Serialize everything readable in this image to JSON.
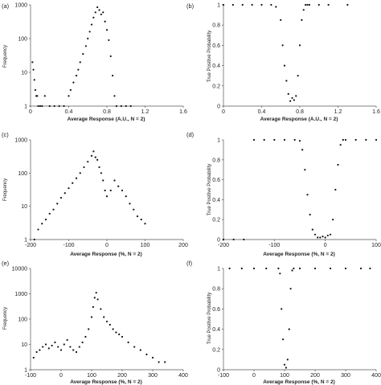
{
  "chart_data": [
    {
      "panel": "(a)",
      "type": "scatter",
      "yscale": "log",
      "xlabel": "Average Response (A.U., N = 2)",
      "ylabel": "Frequency",
      "xlim": [
        0,
        1.6
      ],
      "ylim": [
        1,
        1000
      ],
      "xticks": [
        "0",
        "0.4",
        "0.8",
        "1.2",
        "1.6"
      ],
      "yticks": [
        "1",
        "10",
        "100",
        "1000"
      ],
      "x": [
        0.02,
        0.03,
        0.04,
        0.05,
        0.06,
        0.07,
        0.08,
        0.1,
        0.12,
        0.15,
        0.2,
        0.25,
        0.3,
        0.35,
        0.4,
        0.42,
        0.45,
        0.48,
        0.5,
        0.52,
        0.55,
        0.58,
        0.6,
        0.62,
        0.64,
        0.66,
        0.68,
        0.7,
        0.72,
        0.74,
        0.76,
        0.78,
        0.8,
        0.82,
        0.84,
        0.86,
        0.88,
        0.9,
        0.95,
        1.0,
        1.05
      ],
      "y": [
        20,
        12,
        6,
        3,
        2,
        2,
        1,
        1,
        1,
        2,
        1,
        1,
        1,
        1,
        2,
        3,
        5,
        8,
        12,
        20,
        35,
        60,
        100,
        160,
        260,
        420,
        600,
        850,
        700,
        520,
        600,
        320,
        180,
        90,
        30,
        8,
        2,
        1,
        1,
        1,
        1
      ]
    },
    {
      "panel": "(b)",
      "type": "scatter",
      "xlabel": "Average Response (A.U., N = 2)",
      "ylabel": "True Positive Probability",
      "xlim": [
        0,
        1.6
      ],
      "ylim": [
        0,
        1
      ],
      "xticks": [
        "0",
        "0.4",
        "0.8",
        "1.2",
        "1.6"
      ],
      "yticks": [
        "0",
        "0.2",
        "0.4",
        "0.6",
        "0.8",
        "1"
      ],
      "x": [
        0.0,
        0.1,
        0.2,
        0.3,
        0.4,
        0.5,
        0.55,
        0.6,
        0.62,
        0.64,
        0.66,
        0.68,
        0.7,
        0.72,
        0.74,
        0.76,
        0.78,
        0.8,
        0.82,
        0.84,
        0.86,
        0.88,
        0.9,
        1.0,
        1.1,
        1.3
      ],
      "y": [
        1,
        1,
        1,
        1,
        1,
        1,
        0.98,
        0.85,
        0.6,
        0.4,
        0.25,
        0.12,
        0.05,
        0.08,
        0.06,
        0.1,
        0.3,
        0.6,
        0.85,
        0.95,
        1,
        1,
        1,
        1,
        1,
        1
      ]
    },
    {
      "panel": "(c)",
      "type": "scatter",
      "yscale": "log",
      "xlabel": "Average Response (%, N = 2)",
      "ylabel": "Frequency",
      "xlim": [
        -200,
        200
      ],
      "ylim": [
        1,
        1000
      ],
      "xticks": [
        "-200",
        "-100",
        "0",
        "100",
        "200"
      ],
      "yticks": [
        "1",
        "10",
        "100",
        "1000"
      ],
      "x": [
        -190,
        -180,
        -170,
        -160,
        -150,
        -140,
        -130,
        -120,
        -110,
        -100,
        -90,
        -80,
        -70,
        -60,
        -50,
        -40,
        -35,
        -30,
        -25,
        -20,
        -15,
        -10,
        -5,
        0,
        10,
        20,
        30,
        40,
        50,
        60,
        70,
        80,
        90,
        100
      ],
      "y": [
        1,
        2,
        3,
        4,
        6,
        8,
        12,
        18,
        25,
        35,
        50,
        70,
        100,
        150,
        220,
        330,
        450,
        300,
        250,
        150,
        100,
        60,
        30,
        20,
        30,
        60,
        40,
        30,
        20,
        12,
        8,
        5,
        4,
        3
      ]
    },
    {
      "panel": "(d)",
      "type": "scatter",
      "xlabel": "Average Response (%, N = 2)",
      "ylabel": "True Positive Probability",
      "xlim": [
        -200,
        100
      ],
      "ylim": [
        0,
        1
      ],
      "xticks": [
        "-200",
        "-100",
        "0",
        "100"
      ],
      "yticks": [
        "0",
        "0.2",
        "0.4",
        "0.6",
        "0.8",
        "1"
      ],
      "x": [
        -200,
        -180,
        -160,
        -140,
        -120,
        -100,
        -80,
        -60,
        -50,
        -45,
        -40,
        -35,
        -30,
        -25,
        -20,
        -15,
        -10,
        -5,
        0,
        5,
        10,
        15,
        20,
        25,
        30,
        35,
        40,
        60,
        80,
        100
      ],
      "y": [
        0,
        0,
        0,
        1,
        1,
        1,
        1,
        1,
        0.99,
        0.9,
        0.7,
        0.45,
        0.25,
        0.1,
        0.05,
        0.02,
        0.02,
        0.03,
        0.02,
        0.04,
        0.05,
        0.2,
        0.5,
        0.75,
        0.95,
        1,
        1,
        1,
        1,
        1
      ]
    },
    {
      "panel": "(e)",
      "type": "scatter",
      "yscale": "log",
      "xlabel": "Average Response (%, N = 2)",
      "ylabel": "Frequency",
      "xlim": [
        -100,
        400
      ],
      "ylim": [
        1,
        10000
      ],
      "xticks": [
        "-100",
        "0",
        "100",
        "200",
        "300",
        "400"
      ],
      "yticks": [
        "1",
        "10",
        "100",
        "1000",
        "10000"
      ],
      "x": [
        -90,
        -80,
        -70,
        -60,
        -50,
        -40,
        -30,
        -20,
        -10,
        0,
        10,
        20,
        30,
        40,
        50,
        60,
        70,
        80,
        90,
        100,
        105,
        110,
        115,
        120,
        130,
        140,
        150,
        160,
        170,
        180,
        190,
        200,
        220,
        240,
        260,
        280,
        300,
        320,
        340
      ],
      "y": [
        3,
        5,
        6,
        8,
        10,
        7,
        9,
        12,
        8,
        6,
        10,
        15,
        8,
        6,
        5,
        8,
        12,
        20,
        40,
        120,
        300,
        700,
        1100,
        600,
        250,
        120,
        80,
        60,
        40,
        30,
        25,
        20,
        12,
        8,
        6,
        4,
        3,
        2,
        2
      ]
    },
    {
      "panel": "(f)",
      "type": "scatter",
      "xlabel": "Average Response (%, N = 2)",
      "ylabel": "True Positive Probability",
      "xlim": [
        -100,
        400
      ],
      "ylim": [
        0,
        1
      ],
      "xticks": [
        "-100",
        "0",
        "100",
        "200",
        "300",
        "400"
      ],
      "yticks": [
        "0",
        "0.2",
        "0.4",
        "0.6",
        "0.8",
        "1"
      ],
      "x": [
        -80,
        -40,
        0,
        40,
        80,
        85,
        90,
        95,
        100,
        105,
        110,
        115,
        120,
        125,
        130,
        150,
        200,
        250,
        300,
        350,
        380
      ],
      "y": [
        1,
        1,
        1,
        1,
        1,
        0.95,
        0.6,
        0.3,
        0.05,
        0.02,
        0.1,
        0.4,
        0.8,
        0.98,
        1,
        1,
        1,
        1,
        1,
        1,
        1
      ]
    }
  ]
}
